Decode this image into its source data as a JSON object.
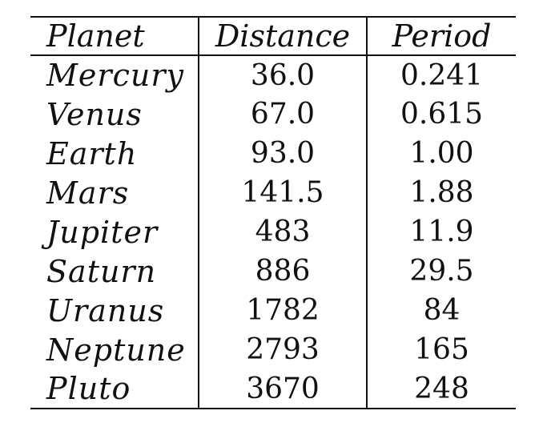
{
  "table": {
    "headers": [
      "Planet",
      "Distance",
      "Period"
    ],
    "rows": [
      {
        "planet": "Mercury",
        "distance": "36.0",
        "period": "0.241"
      },
      {
        "planet": "Venus",
        "distance": "67.0",
        "period": "0.615"
      },
      {
        "planet": "Earth",
        "distance": "93.0",
        "period": "1.00"
      },
      {
        "planet": "Mars",
        "distance": "141.5",
        "period": "1.88"
      },
      {
        "planet": "Jupiter",
        "distance": "483",
        "period": "11.9"
      },
      {
        "planet": "Saturn",
        "distance": "886",
        "period": "29.5"
      },
      {
        "planet": "Uranus",
        "distance": "1782",
        "period": "84"
      },
      {
        "planet": "Neptune",
        "distance": "2793",
        "period": "165"
      },
      {
        "planet": "Pluto",
        "distance": "3670",
        "period": "248"
      }
    ]
  }
}
